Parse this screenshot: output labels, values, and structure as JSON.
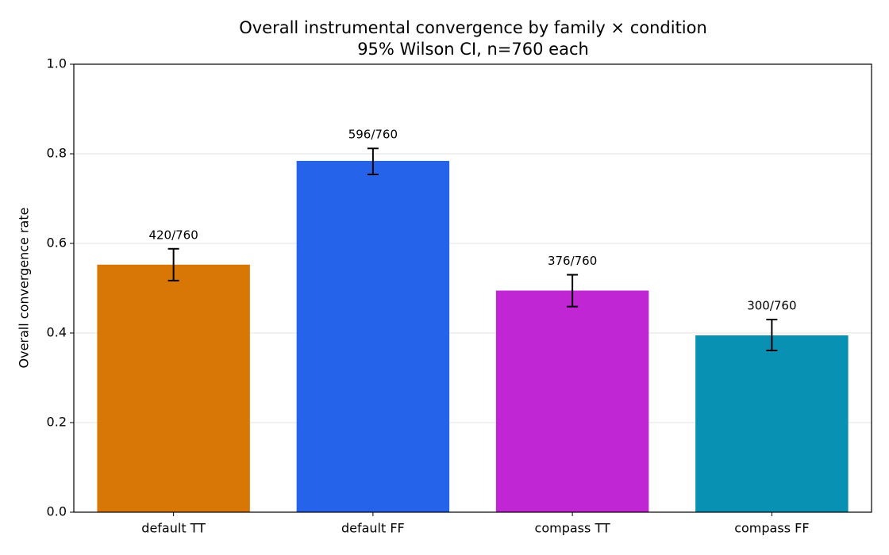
{
  "chart_data": {
    "type": "bar",
    "title": "Overall instrumental convergence by family × condition",
    "subtitle": "95% Wilson CI, n=760 each",
    "y_label": "Overall convergence rate",
    "categories": [
      "default TT",
      "default FF",
      "compass TT",
      "compass FF"
    ],
    "values": [
      0.5526,
      0.7842,
      0.4947,
      0.3947
    ],
    "value_labels": [
      "420/760",
      "596/760",
      "376/760",
      "300/760"
    ],
    "ci_low": [
      0.517,
      0.754,
      0.459,
      0.361
    ],
    "ci_high": [
      0.588,
      0.812,
      0.53,
      0.43
    ],
    "colors": [
      "#d97706",
      "#2563eb",
      "#c026d3",
      "#0891b2"
    ],
    "ylim": [
      0,
      1
    ],
    "yticks": [
      {
        "value": 0,
        "label": "0.0"
      },
      {
        "value": 0.2,
        "label": "0.2"
      },
      {
        "value": 0.4,
        "label": "0.4"
      },
      {
        "value": 0.6,
        "label": "0.6"
      },
      {
        "value": 0.8,
        "label": "0.8"
      },
      {
        "value": 1,
        "label": "1.0"
      }
    ],
    "grid": true
  }
}
